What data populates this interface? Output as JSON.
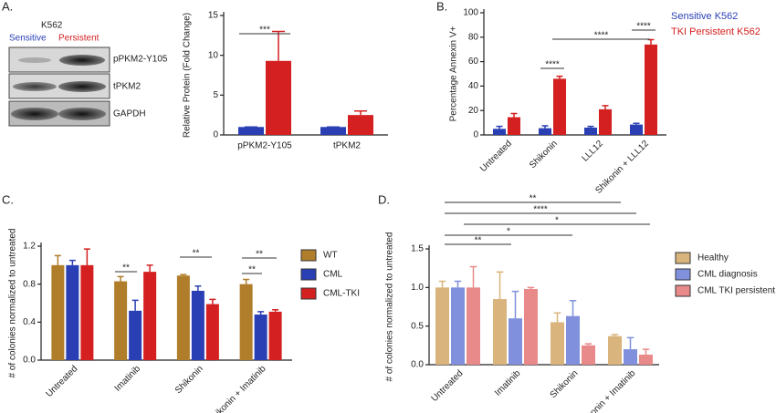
{
  "blot": {
    "cell_line": "K562",
    "lanes": [
      "Sensitive",
      "Persistent"
    ],
    "bands": [
      "pPKM2-Y105",
      "tPKM2",
      "GAPDH"
    ]
  },
  "panels": [
    "A.",
    "B.",
    "C.",
    "D."
  ],
  "chart_data": [
    {
      "type": "bar",
      "ylabel": "Relative Protein (Fold Change)",
      "categories": [
        "pPKM2-Y105",
        "tPKM2"
      ],
      "series": [
        {
          "name": "Sensitive",
          "color": "#2b3fb5",
          "values": [
            1,
            1
          ],
          "errors": [
            0,
            0
          ]
        },
        {
          "name": "Persistent",
          "color": "#d42020",
          "values": [
            9.3,
            2.5
          ],
          "errors": [
            3.7,
            0.5
          ]
        }
      ],
      "ylim": [
        0,
        15
      ],
      "yticks": [
        0,
        5,
        10,
        15
      ],
      "annotations": [
        "***"
      ]
    },
    {
      "type": "bar",
      "ylabel": "Percentage Annexin V+",
      "categories": [
        "Untreated",
        "Shikonin",
        "LLL12",
        "Shikonin + LLL12"
      ],
      "series": [
        {
          "name": "Sensitive K562",
          "color": "#2b3fb5",
          "values": [
            5,
            5.5,
            6,
            8.5
          ],
          "errors": [
            2,
            2,
            1,
            1
          ]
        },
        {
          "name": "TKI Persistent K562",
          "color": "#d42020",
          "values": [
            14.5,
            46,
            21,
            74
          ],
          "errors": [
            3,
            2,
            3,
            4
          ]
        }
      ],
      "ylim": [
        0,
        100
      ],
      "yticks": [
        0,
        20,
        40,
        60,
        80,
        100
      ],
      "legend": "text",
      "annotations": [
        "****",
        "****",
        "****"
      ]
    },
    {
      "type": "bar",
      "ylabel": "# of colonies normalized to untreated",
      "categories": [
        "Untreated",
        "Imatinib",
        "Shikonin",
        "Shikonin + Imatinib"
      ],
      "series": [
        {
          "name": "WT",
          "color": "#b07d2a",
          "values": [
            1.0,
            0.83,
            0.89,
            0.8
          ],
          "errors": [
            0.1,
            0.05,
            0.01,
            0.05
          ]
        },
        {
          "name": "CML",
          "color": "#2b3fb5",
          "values": [
            1.0,
            0.52,
            0.73,
            0.48
          ],
          "errors": [
            0.05,
            0.11,
            0.05,
            0.03
          ]
        },
        {
          "name": "CML-TKI",
          "color": "#d42020",
          "values": [
            1.0,
            0.93,
            0.59,
            0.51
          ],
          "errors": [
            0.17,
            0.07,
            0.05,
            0.02
          ]
        }
      ],
      "ylim": [
        0,
        1.2
      ],
      "yticks": [
        {
          "value": 0,
          "label": "0.0"
        },
        {
          "value": 0.4,
          "label": "0.4"
        },
        {
          "value": 0.8,
          "label": "0.8"
        },
        {
          "value": 1.2,
          "label": "1.2"
        }
      ],
      "legend": "swatch",
      "annotations": [
        "**",
        "**",
        "**",
        "**"
      ]
    },
    {
      "type": "bar",
      "ylabel": "# of colonies normalized to untreated",
      "categories": [
        "Untreated",
        "Imatinib",
        "Shikonin",
        "Shikonin + Imatinib"
      ],
      "series": [
        {
          "name": "Healthy",
          "color": "#d9b47c",
          "values": [
            1.0,
            0.85,
            0.55,
            0.37
          ],
          "errors": [
            0.08,
            0.35,
            0.12,
            0.02
          ]
        },
        {
          "name": "CML diagnosis",
          "color": "#8090dc",
          "values": [
            1.0,
            0.6,
            0.63,
            0.2
          ],
          "errors": [
            0.08,
            0.35,
            0.2,
            0.15
          ]
        },
        {
          "name": "CML TKI persistent",
          "color": "#e98a8a",
          "values": [
            1.0,
            0.98,
            0.25,
            0.13
          ],
          "errors": [
            0.27,
            0.02,
            0.02,
            0.07
          ]
        }
      ],
      "ylim": [
        0,
        1.5
      ],
      "yticks": [
        {
          "value": 0,
          "label": "0.0"
        },
        {
          "value": 0.5,
          "label": "0.5"
        },
        {
          "value": 1.0,
          "label": "1.0"
        },
        {
          "value": 1.5,
          "label": "1.5"
        }
      ],
      "legend": "swatch",
      "annotations": [
        "**",
        "****",
        "*",
        "*",
        "**"
      ]
    }
  ]
}
